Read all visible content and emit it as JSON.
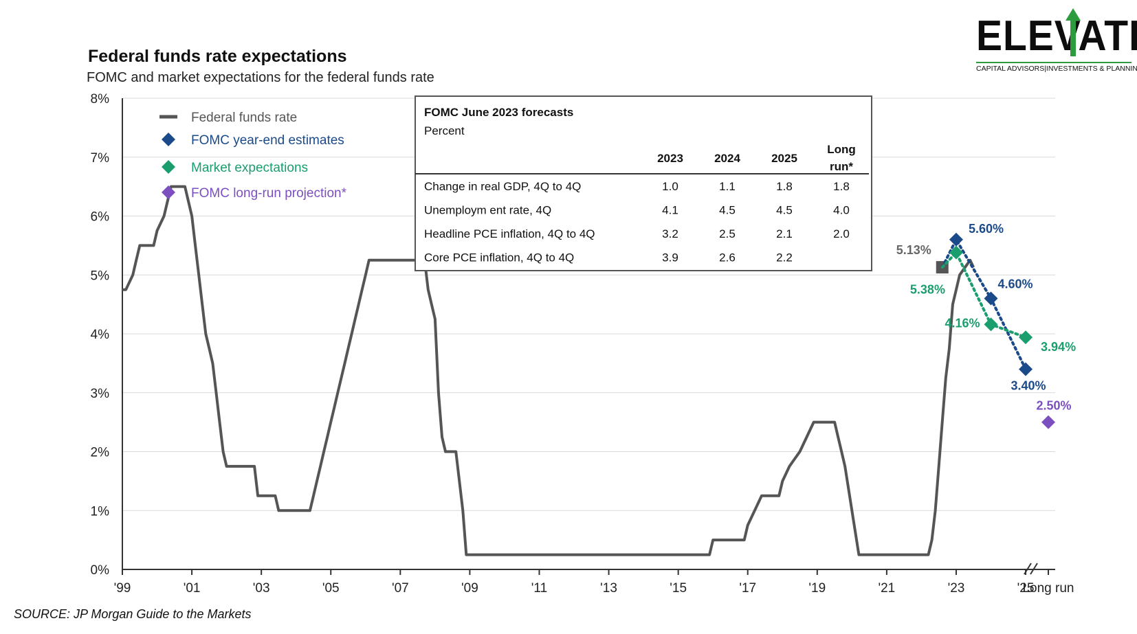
{
  "header": {
    "title": "Federal funds rate expectations",
    "subtitle": "FOMC and market expectations for the federal funds rate"
  },
  "source": "SOURCE: JP Morgan Guide to the Markets",
  "logo": {
    "name": "ELEVATE",
    "tagline": "CAPITAL ADVISORS|INVESTMENTS & PLANNING",
    "accent_color": "#2e9b3e"
  },
  "colors": {
    "fed_funds": "#555555",
    "fomc": "#1a4a8a",
    "market": "#1a9e6e",
    "long_run": "#7b4fc0"
  },
  "legend": [
    {
      "label": "Federal funds rate",
      "marker": "line",
      "color": "#555555"
    },
    {
      "label": "FOMC  year-end estimates",
      "marker": "diamond",
      "color": "#1a4a8a"
    },
    {
      "label": "Market expectations",
      "marker": "diamond",
      "color": "#1a9e6e"
    },
    {
      "label": "FOMC  long-run projection*",
      "marker": "diamond",
      "color": "#7b4fc0"
    }
  ],
  "table": {
    "title": "FOMC June 2023 forecasts",
    "subtitle": "Percent",
    "columns": [
      "2023",
      "2024",
      "2025",
      "Long",
      "run*"
    ],
    "rows": [
      {
        "label": "Change in real GDP, 4Q to 4Q",
        "values": [
          "1.0",
          "1.1",
          "1.8",
          "1.8"
        ]
      },
      {
        "label": "Unemploym ent rate, 4Q",
        "values": [
          "4.1",
          "4.5",
          "4.5",
          "4.0"
        ]
      },
      {
        "label": "Headline PCE inflation, 4Q to 4Q",
        "values": [
          "3.2",
          "2.5",
          "2.1",
          "2.0"
        ]
      },
      {
        "label": "Core PCE inflation, 4Q to 4Q",
        "values": [
          "3.9",
          "2.6",
          "2.2",
          ""
        ]
      }
    ]
  },
  "chart_data": {
    "type": "line",
    "title": "Federal funds rate expectations",
    "xlabel": "",
    "ylabel": "",
    "ylim": [
      0,
      8
    ],
    "y_ticks": [
      "0%",
      "1%",
      "2%",
      "3%",
      "4%",
      "5%",
      "6%",
      "7%",
      "8%"
    ],
    "x_ticks": [
      "'99",
      "'01",
      "'03",
      "'05",
      "'07",
      "'09",
      "'11",
      "'13",
      "'15",
      "'17",
      "'19",
      "'21",
      "'23",
      "'25",
      "Long run"
    ],
    "grid": true,
    "legend_position": "top-left",
    "series": [
      {
        "name": "Federal funds rate",
        "x": [
          1999.0,
          1999.1,
          1999.3,
          1999.4,
          1999.5,
          1999.9,
          2000.0,
          2000.2,
          2000.4,
          2000.6,
          2000.7,
          2000.8,
          2001.0,
          2001.1,
          2001.2,
          2001.3,
          2001.4,
          2001.5,
          2001.6,
          2001.7,
          2001.8,
          2001.9,
          2002.0,
          2002.8,
          2002.9,
          2003.4,
          2003.5,
          2004.4,
          2004.5,
          2004.6,
          2004.7,
          2004.8,
          2004.9,
          2005.0,
          2005.1,
          2005.2,
          2005.3,
          2005.4,
          2005.5,
          2005.6,
          2005.7,
          2005.8,
          2005.9,
          2006.0,
          2006.1,
          2006.2,
          2006.4,
          2006.5,
          2007.6,
          2007.7,
          2007.8,
          2007.9,
          2008.0,
          2008.1,
          2008.2,
          2008.3,
          2008.4,
          2008.5,
          2008.6,
          2008.8,
          2008.9,
          2009.0,
          2015.9,
          2016.0,
          2016.9,
          2017.0,
          2017.2,
          2017.4,
          2017.9,
          2018.0,
          2018.2,
          2018.5,
          2018.7,
          2018.9,
          2019.5,
          2019.6,
          2019.7,
          2019.8,
          2020.2,
          2022.2,
          2022.3,
          2022.4,
          2022.5,
          2022.6,
          2022.7,
          2022.8,
          2022.9,
          2023.0,
          2023.1,
          2023.4,
          2023.5
        ],
        "y": [
          4.75,
          4.75,
          5.0,
          5.25,
          5.5,
          5.5,
          5.75,
          6.0,
          6.5,
          6.5,
          6.5,
          6.5,
          6.0,
          5.5,
          5.0,
          4.5,
          4.0,
          3.75,
          3.5,
          3.0,
          2.5,
          2.0,
          1.75,
          1.75,
          1.25,
          1.25,
          1.0,
          1.0,
          1.25,
          1.5,
          1.75,
          2.0,
          2.25,
          2.5,
          2.75,
          3.0,
          3.25,
          3.5,
          3.75,
          4.0,
          4.25,
          4.5,
          4.75,
          5.0,
          5.25,
          5.25,
          5.25,
          5.25,
          5.25,
          5.25,
          4.75,
          4.5,
          4.25,
          3.0,
          2.25,
          2.0,
          2.0,
          2.0,
          2.0,
          1.0,
          0.25,
          0.25,
          0.25,
          0.5,
          0.5,
          0.75,
          1.0,
          1.25,
          1.25,
          1.5,
          1.75,
          2.0,
          2.25,
          2.5,
          2.5,
          2.25,
          2.0,
          1.75,
          0.25,
          0.25,
          0.5,
          1.0,
          1.75,
          2.5,
          3.25,
          3.75,
          4.5,
          4.75,
          5.0,
          5.25,
          5.13
        ]
      },
      {
        "name": "FOMC  year-end estimates",
        "x": [
          2023.0,
          2024.0,
          2025.0
        ],
        "y": [
          5.6,
          4.6,
          3.4
        ],
        "labels": [
          "5.60%",
          "4.60%",
          "3.40%"
        ]
      },
      {
        "name": "Market expectations",
        "x": [
          2023.0,
          2024.0,
          2025.0
        ],
        "y": [
          5.38,
          4.16,
          3.94
        ],
        "labels": [
          "5.38%",
          "4.16%",
          "3.94%"
        ]
      },
      {
        "name": "FOMC  long-run projection*",
        "x": [
          "Long run"
        ],
        "y": [
          2.5
        ],
        "labels": [
          "2.50%"
        ]
      }
    ],
    "annotations": [
      {
        "text": "5.13%",
        "x": 2022.6,
        "y": 5.13
      }
    ]
  }
}
